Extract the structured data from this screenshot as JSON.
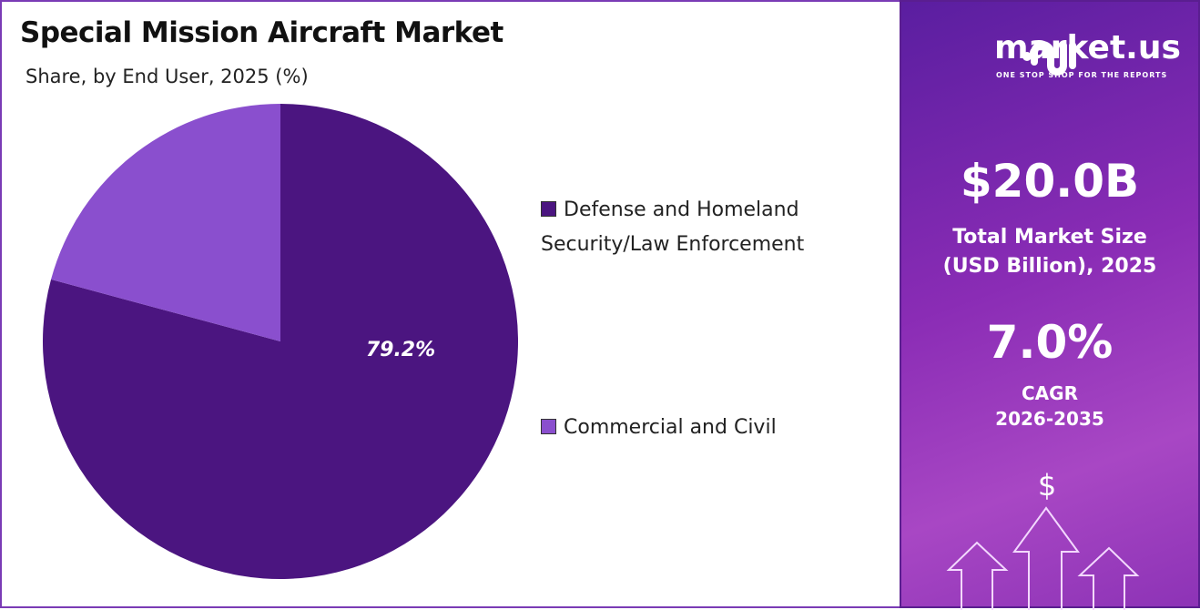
{
  "chart_data": {
    "type": "pie",
    "title": "Special Mission Aircraft Market",
    "subtitle": "Share, by End User, 2025 (%)",
    "series": [
      {
        "name": "Defense and Homeland Security/Law Enforcement",
        "value": 79.2,
        "label": "79.2%",
        "color": "#4b1580"
      },
      {
        "name": "Commercial and Civil",
        "value": 20.8,
        "color": "#8a4fce"
      }
    ],
    "legend_lines": [
      [
        "Defense and Homeland",
        "Security/Law Enforcement"
      ],
      [
        "Commercial and Civil"
      ]
    ],
    "legend_position": "right"
  },
  "sidebar": {
    "logo_word": "market.us",
    "logo_tagline": "ONE STOP SHOP FOR THE REPORTS",
    "market_size": "$20.0B",
    "market_size_label_1": "Total Market Size",
    "market_size_label_2": "(USD Billion), 2025",
    "cagr": "7.0%",
    "cagr_label_1": "CAGR",
    "cagr_label_2": "2026-2035",
    "dollar_symbol": "$"
  }
}
